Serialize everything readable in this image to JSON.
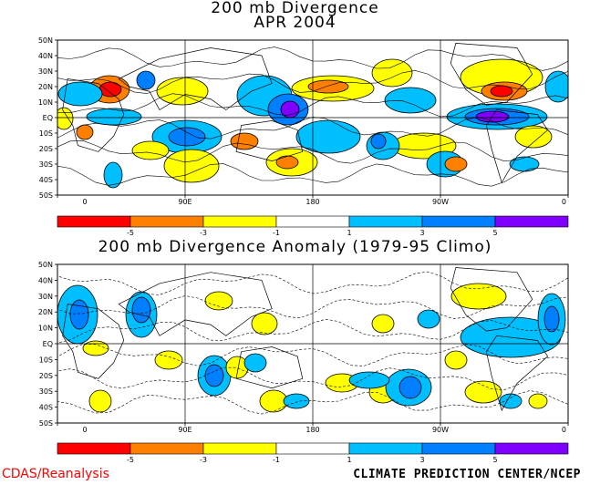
{
  "titles": {
    "top_line1": "200 mb Divergence",
    "top_line2": "APR 2004",
    "bottom": "200 mb Divergence Anomaly (1979-95 Climo)"
  },
  "axes": {
    "lat_labels": [
      "50N",
      "40N",
      "30N",
      "20N",
      "10N",
      "EQ",
      "10S",
      "20S",
      "30S",
      "40S",
      "50S"
    ],
    "lon_labels": [
      "0",
      "90E",
      "180",
      "90W",
      "0"
    ]
  },
  "colorbar": {
    "labels": [
      "-5",
      "-3",
      "-1",
      "1",
      "3",
      "5"
    ],
    "colors": [
      "#ff0000",
      "#ff8000",
      "#ffff00",
      "#ffffff",
      "#00bfff",
      "#0080ff",
      "#8000ff"
    ]
  },
  "footer": {
    "left": "CDAS/Reanalysis",
    "right": "CLIMATE PREDICTION CENTER/NCEP"
  },
  "colors": {
    "neg_strong": "#ff0000",
    "neg_mid": "#ff8000",
    "neg_weak": "#ffff00",
    "pos_weak": "#00bfff",
    "pos_mid": "#0080ff",
    "pos_strong": "#8000ff"
  }
}
